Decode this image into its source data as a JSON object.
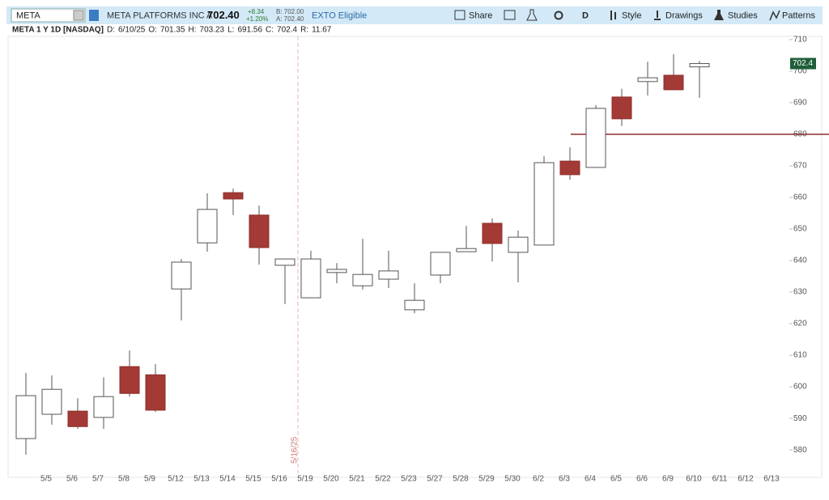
{
  "toolbar": {
    "symbol": "META",
    "company": "META PLATFORMS INC A",
    "last": "702.40",
    "change": "+8.34",
    "change_pct": "+1.20%",
    "bid": "B: 702.00",
    "ask": "A: 702.40",
    "badge": "EXTO Eligible",
    "share": "Share",
    "aggregation": "D",
    "style": "Style",
    "drawings": "Drawings",
    "studies": "Studies",
    "patterns": "Patterns"
  },
  "chart_data": {
    "type": "candlestick",
    "header": {
      "symbol": "META 1 Y 1D [NASDAQ]",
      "labels": [
        "D:",
        "O:",
        "H:",
        "L:",
        "C:",
        "R:"
      ],
      "date": "6/10/25",
      "range": 11.67
    },
    "categories": [
      null,
      "5/5",
      "5/6",
      "5/7",
      "5/8",
      "5/9",
      "5/12",
      "5/13",
      "5/14",
      "5/15",
      "5/16",
      "5/19",
      "5/20",
      "5/21",
      "5/22",
      "5/23",
      "5/27",
      "5/28",
      "5/29",
      "5/30",
      "6/2",
      "6/3",
      "6/4",
      "6/5",
      "6/6",
      "6/9",
      "6/10",
      "6/11",
      "6/12",
      "6/13"
    ],
    "open": [
      583.6,
      591.3,
      592.3,
      590.3,
      606.4,
      603.8,
      631.0,
      645.6,
      661.5,
      654.4,
      638.5,
      628.2,
      636.2,
      632.0,
      634.1,
      624.4,
      635.4,
      642.8,
      651.8,
      642.6,
      644.9,
      671.5,
      669.5,
      691.8,
      696.7,
      698.7,
      701.35,
      null,
      null,
      null
    ],
    "high": [
      604.4,
      603.6,
      596.4,
      603.0,
      611.5,
      607.2,
      640.5,
      661.3,
      662.8,
      657.4,
      640.5,
      643.1,
      639.2,
      646.9,
      643.1,
      632.8,
      642.6,
      651.0,
      653.3,
      649.5,
      673.1,
      675.9,
      689.2,
      694.4,
      703.0,
      705.4,
      703.23,
      null,
      null,
      null
    ],
    "low": [
      578.5,
      588.0,
      586.7,
      586.7,
      596.9,
      592.0,
      621.0,
      642.8,
      654.4,
      638.7,
      626.2,
      628.2,
      632.8,
      630.8,
      631.3,
      623.3,
      632.8,
      642.8,
      639.7,
      633.1,
      644.9,
      665.6,
      669.5,
      682.6,
      692.3,
      694.1,
      691.56,
      null,
      null,
      null
    ],
    "close": [
      597.2,
      599.2,
      587.4,
      596.9,
      597.9,
      592.6,
      639.5,
      656.2,
      659.5,
      644.1,
      640.5,
      640.5,
      637.2,
      635.6,
      636.7,
      627.4,
      642.6,
      643.8,
      645.4,
      647.4,
      671.0,
      667.2,
      688.2,
      684.9,
      697.9,
      694.1,
      702.4,
      null,
      null,
      null
    ],
    "up_color": "#ffffff",
    "down_color": "#a33a35",
    "ylim": [
      572.6,
      711
    ],
    "yticks": [
      580,
      590,
      600,
      610,
      620,
      630,
      640,
      650,
      660,
      670,
      680,
      690,
      700,
      710
    ],
    "hline": {
      "value": 680,
      "color": "#8b2e2a"
    },
    "marker": {
      "label": "5/16/25"
    }
  }
}
